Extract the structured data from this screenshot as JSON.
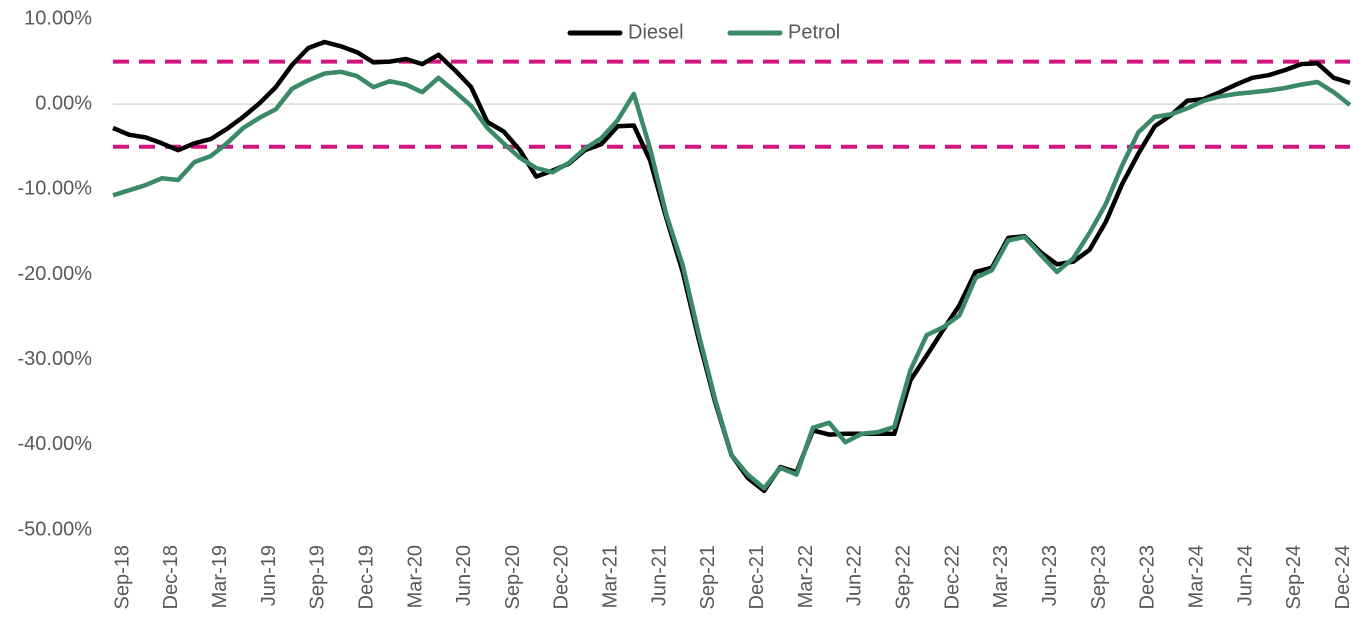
{
  "chart_data": {
    "type": "line",
    "categories": [
      "Sep-18",
      null,
      null,
      "Dec-18",
      null,
      null,
      "Mar-19",
      null,
      null,
      "Jun-19",
      null,
      null,
      "Sep-19",
      null,
      null,
      "Dec-19",
      null,
      null,
      "Mar-20",
      null,
      null,
      "Jun-20",
      null,
      null,
      "Sep-20",
      null,
      null,
      "Dec-20",
      null,
      null,
      "Mar-21",
      null,
      null,
      "Jun-21",
      null,
      null,
      "Sep-21",
      null,
      null,
      "Dec-21",
      null,
      null,
      "Mar-22",
      null,
      null,
      "Jun-22",
      null,
      null,
      "Sep-22",
      null,
      null,
      "Dec-22",
      null,
      null,
      "Mar-23",
      null,
      null,
      "Jun-23",
      null,
      null,
      "Sep-23",
      null,
      null,
      "Dec-23",
      null,
      null,
      "Mar-24",
      null,
      null,
      "Jun-24",
      null,
      null,
      "Sep-24",
      null,
      null,
      "Dec-24",
      null
    ],
    "series": [
      {
        "name": "Diesel",
        "color": "#000000",
        "values": [
          -2.8,
          -3.6,
          -3.9,
          -4.6,
          -5.4,
          -4.6,
          -4.1,
          -2.9,
          -1.5,
          0.1,
          2.0,
          4.6,
          6.6,
          7.3,
          6.8,
          6.1,
          4.9,
          5.0,
          5.3,
          4.7,
          5.8,
          4.0,
          2.0,
          -2.1,
          -3.2,
          -5.4,
          -8.5,
          -7.8,
          -7.0,
          -5.4,
          -4.7,
          -2.6,
          -2.5,
          -6.6,
          -13.4,
          -19.7,
          -27.7,
          -35.0,
          -41.2,
          -43.9,
          -45.4,
          -42.6,
          -43.2,
          -38.3,
          -38.8,
          -38.7,
          -38.7,
          -38.7,
          -38.7,
          -32.4,
          -29.5,
          -26.5,
          -23.6,
          -19.7,
          -19.2,
          -15.7,
          -15.5,
          -17.4,
          -18.8,
          -18.5,
          -17.1,
          -13.8,
          -9.4,
          -5.8,
          -2.6,
          -1.3,
          0.4,
          0.6,
          1.4,
          2.3,
          3.1,
          3.4,
          4.0,
          4.7,
          4.8,
          3.1,
          2.5
        ]
      },
      {
        "name": "Petrol",
        "color": "#3a8a68",
        "values": [
          -10.7,
          -10.1,
          -9.5,
          -8.7,
          -8.9,
          -6.8,
          -6.1,
          -4.6,
          -2.8,
          -1.6,
          -0.6,
          1.8,
          2.8,
          3.6,
          3.8,
          3.3,
          2.0,
          2.7,
          2.3,
          1.4,
          3.1,
          1.5,
          -0.2,
          -2.8,
          -4.6,
          -6.3,
          -7.5,
          -8.0,
          -6.9,
          -5.2,
          -4.0,
          -1.9,
          1.2,
          -5.2,
          -13.0,
          -18.9,
          -27.1,
          -34.7,
          -41.2,
          -43.5,
          -45.1,
          -42.7,
          -43.5,
          -38.0,
          -37.4,
          -39.7,
          -38.7,
          -38.5,
          -37.9,
          -31.2,
          -27.1,
          -26.2,
          -24.8,
          -20.4,
          -19.5,
          -16.0,
          -15.6,
          -17.7,
          -19.7,
          -18.1,
          -15.1,
          -11.7,
          -7.2,
          -3.3,
          -1.5,
          -1.2,
          -0.5,
          0.4,
          0.9,
          1.2,
          1.4,
          1.6,
          1.9,
          2.3,
          2.6,
          1.4,
          -0.1
        ]
      }
    ],
    "ylim": [
      -50,
      10
    ],
    "yticks": [
      {
        "value": 10,
        "label": "10.00%"
      },
      {
        "value": 0,
        "label": "0.00%"
      },
      {
        "value": -10,
        "label": "-10.00%"
      },
      {
        "value": -20,
        "label": "-20.00%"
      },
      {
        "value": -30,
        "label": "-30.00%"
      },
      {
        "value": -40,
        "label": "-40.00%"
      },
      {
        "value": -50,
        "label": "-50.00%"
      }
    ],
    "reference_lines": {
      "values": [
        5,
        -5
      ],
      "color": "#d0157f"
    },
    "legend": "top"
  }
}
